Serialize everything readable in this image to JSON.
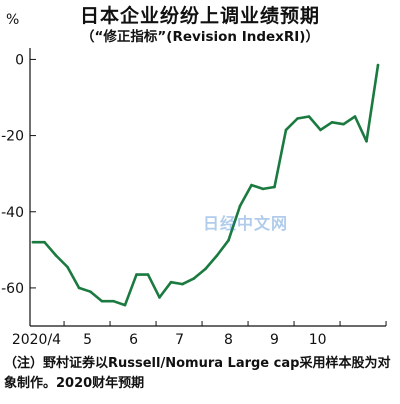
{
  "header": {
    "title": "日本企业纷纷上调业绩预期",
    "subtitle": "（“修正指标”(Revision IndexRI)）"
  },
  "watermark": "日经中文网",
  "note": "（注）野村证券以Russell/Nomura Large cap采用样本股为对象制作。2020财年预期",
  "chart_data": {
    "type": "line",
    "title": "日本企业纷纷上调业绩预期",
    "subtitle": "（“修正指标”(Revision IndexRI)）",
    "ylabel": "%",
    "xlabel": "",
    "ylim": [
      -70,
      3
    ],
    "xlim": [
      0,
      30
    ],
    "y_ticks": [
      0,
      -20,
      -40,
      -60
    ],
    "x_ticks": [
      {
        "label": "2020/4",
        "x": 0.3
      },
      {
        "label": "5",
        "x": 4.75
      },
      {
        "label": "6",
        "x": 8.75
      },
      {
        "label": "7",
        "x": 12.75
      },
      {
        "label": "8",
        "x": 17
      },
      {
        "label": "9",
        "x": 21
      },
      {
        "label": "10",
        "x": 24.75
      }
    ],
    "grid": false,
    "legend": "none",
    "color": "#1a7a3f",
    "series": [
      {
        "x": [
          0,
          1,
          2,
          3,
          4,
          5,
          6,
          7,
          8,
          9,
          10,
          11,
          12,
          13,
          14,
          15,
          16,
          17,
          18,
          19,
          20,
          21,
          22,
          23,
          24,
          25,
          26,
          27,
          28,
          29,
          30
        ],
        "values": [
          -48,
          -48,
          -51.5,
          -54.5,
          -60,
          -61,
          -63.5,
          -63.5,
          -64.5,
          -56.5,
          -56.5,
          -62.5,
          -58.5,
          -59,
          -57.5,
          -55,
          -51.5,
          -47.5,
          -38.5,
          -33,
          -34,
          -33.5,
          -18.5,
          -15.5,
          -15,
          -18.5,
          -16.5,
          -17,
          -15,
          -21.5,
          -1.5
        ]
      }
    ]
  }
}
